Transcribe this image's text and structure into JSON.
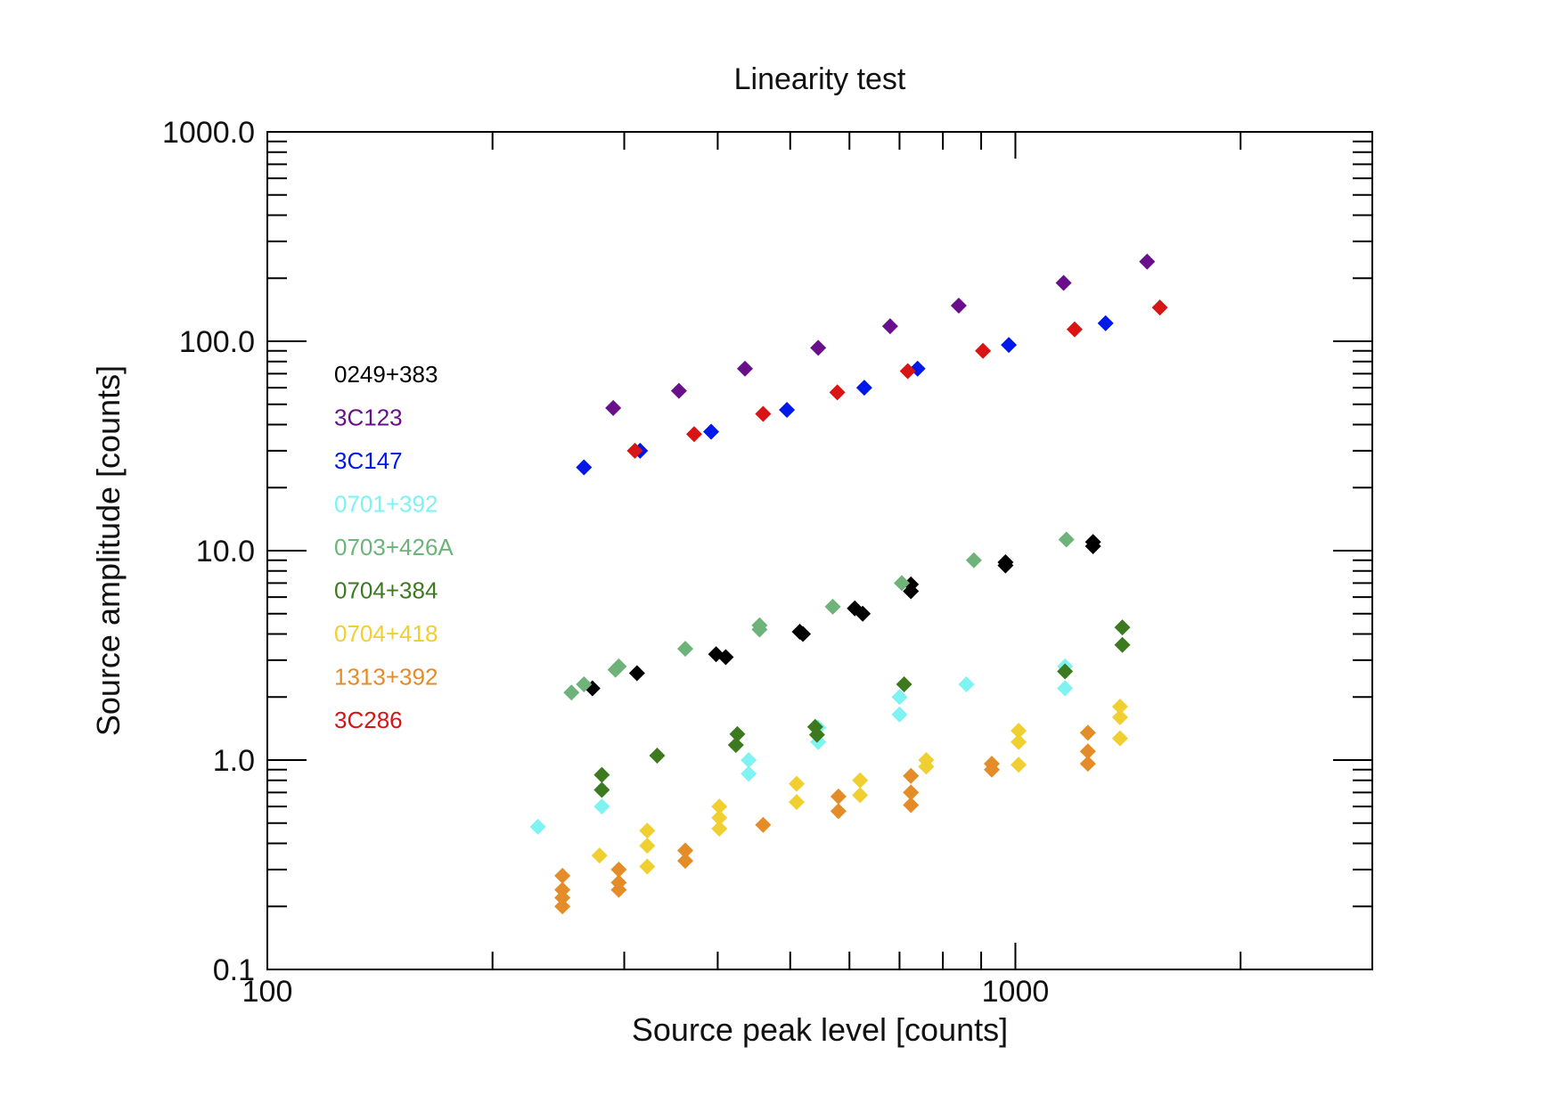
{
  "chart_data": {
    "type": "scatter",
    "title": "Linearity test",
    "xlabel": "Source peak level [counts]",
    "ylabel": "Source amplitude [counts]",
    "xscale": "log",
    "yscale": "log",
    "xlim": [
      100,
      3000
    ],
    "ylim": [
      0.1,
      1000
    ],
    "x_tick_labels": [
      {
        "value": 100,
        "label": "100"
      },
      {
        "value": 1000,
        "label": "1000"
      }
    ],
    "y_tick_labels": [
      {
        "value": 0.1,
        "label": "0.1"
      },
      {
        "value": 1,
        "label": "1.0"
      },
      {
        "value": 10,
        "label": "10.0"
      },
      {
        "value": 100,
        "label": "100.0"
      },
      {
        "value": 1000,
        "label": "1000.0"
      }
    ],
    "marker": "diamond",
    "legend_position": "left",
    "series": [
      {
        "name": "0249+383",
        "color": "#000000",
        "points": [
          [
            272,
            2.2
          ],
          [
            312,
            2.6
          ],
          [
            398,
            3.2
          ],
          [
            410,
            3.1
          ],
          [
            515,
            4.1
          ],
          [
            520,
            4.0
          ],
          [
            610,
            5.3
          ],
          [
            625,
            5.0
          ],
          [
            725,
            6.9
          ],
          [
            725,
            6.4
          ],
          [
            970,
            8.8
          ],
          [
            970,
            8.5
          ],
          [
            1270,
            11.0
          ],
          [
            1270,
            10.5
          ]
        ]
      },
      {
        "name": "3C123",
        "color": "#6a0f8c",
        "points": [
          [
            290,
            48
          ],
          [
            355,
            58
          ],
          [
            435,
            74
          ],
          [
            545,
            93
          ],
          [
            680,
            118
          ],
          [
            840,
            148
          ],
          [
            1160,
            190
          ],
          [
            1500,
            240
          ]
        ]
      },
      {
        "name": "3C147",
        "color": "#0018e8",
        "points": [
          [
            265,
            25
          ],
          [
            315,
            30
          ],
          [
            392,
            37
          ],
          [
            495,
            47
          ],
          [
            628,
            60
          ],
          [
            740,
            74
          ],
          [
            980,
            96
          ],
          [
            1320,
            122
          ]
        ]
      },
      {
        "name": "0701+392",
        "color": "#7ff2f2",
        "points": [
          [
            230,
            0.48
          ],
          [
            280,
            0.6
          ],
          [
            280,
            0.72
          ],
          [
            440,
            1.0
          ],
          [
            440,
            0.86
          ],
          [
            545,
            1.43
          ],
          [
            545,
            1.22
          ],
          [
            700,
            2.0
          ],
          [
            700,
            1.65
          ],
          [
            860,
            2.3
          ],
          [
            1165,
            2.8
          ],
          [
            1165,
            2.2
          ]
        ]
      },
      {
        "name": "0703+426A",
        "color": "#6db37a",
        "points": [
          [
            255,
            2.1
          ],
          [
            265,
            2.3
          ],
          [
            295,
            2.8
          ],
          [
            292,
            2.7
          ],
          [
            362,
            3.4
          ],
          [
            455,
            4.4
          ],
          [
            455,
            4.2
          ],
          [
            570,
            5.4
          ],
          [
            705,
            7.0
          ],
          [
            880,
            9.0
          ],
          [
            1170,
            11.3
          ]
        ]
      },
      {
        "name": "0704+384",
        "color": "#3d7a1f",
        "points": [
          [
            280,
            0.85
          ],
          [
            280,
            0.72
          ],
          [
            332,
            1.05
          ],
          [
            425,
            1.33
          ],
          [
            423,
            1.18
          ],
          [
            540,
            1.44
          ],
          [
            543,
            1.32
          ],
          [
            710,
            2.3
          ],
          [
            1165,
            2.65
          ],
          [
            1390,
            4.3
          ],
          [
            1390,
            3.55
          ]
        ]
      },
      {
        "name": "0704+418",
        "color": "#f0cf30",
        "points": [
          [
            278,
            0.35
          ],
          [
            322,
            0.46
          ],
          [
            322,
            0.39
          ],
          [
            322,
            0.31
          ],
          [
            402,
            0.6
          ],
          [
            402,
            0.53
          ],
          [
            402,
            0.47
          ],
          [
            510,
            0.77
          ],
          [
            510,
            0.63
          ],
          [
            620,
            0.8
          ],
          [
            620,
            0.68
          ],
          [
            760,
            1.0
          ],
          [
            760,
            0.93
          ],
          [
            1010,
            1.38
          ],
          [
            1010,
            1.22
          ],
          [
            1010,
            0.95
          ],
          [
            1380,
            1.8
          ],
          [
            1380,
            1.6
          ],
          [
            1380,
            1.27
          ]
        ]
      },
      {
        "name": "1313+392",
        "color": "#e48c27",
        "points": [
          [
            248,
            0.28
          ],
          [
            248,
            0.24
          ],
          [
            248,
            0.22
          ],
          [
            248,
            0.2
          ],
          [
            295,
            0.3
          ],
          [
            295,
            0.26
          ],
          [
            295,
            0.24
          ],
          [
            362,
            0.37
          ],
          [
            362,
            0.33
          ],
          [
            460,
            0.49
          ],
          [
            580,
            0.67
          ],
          [
            580,
            0.57
          ],
          [
            725,
            0.84
          ],
          [
            725,
            0.7
          ],
          [
            725,
            0.61
          ],
          [
            930,
            0.96
          ],
          [
            930,
            0.9
          ],
          [
            1250,
            1.35
          ],
          [
            1250,
            1.1
          ],
          [
            1250,
            0.96
          ]
        ]
      },
      {
        "name": "3C286",
        "color": "#d81414",
        "points": [
          [
            310,
            30
          ],
          [
            372,
            36
          ],
          [
            460,
            45
          ],
          [
            578,
            57
          ],
          [
            718,
            72
          ],
          [
            905,
            90
          ],
          [
            1200,
            114
          ],
          [
            1560,
            145
          ]
        ]
      }
    ]
  }
}
